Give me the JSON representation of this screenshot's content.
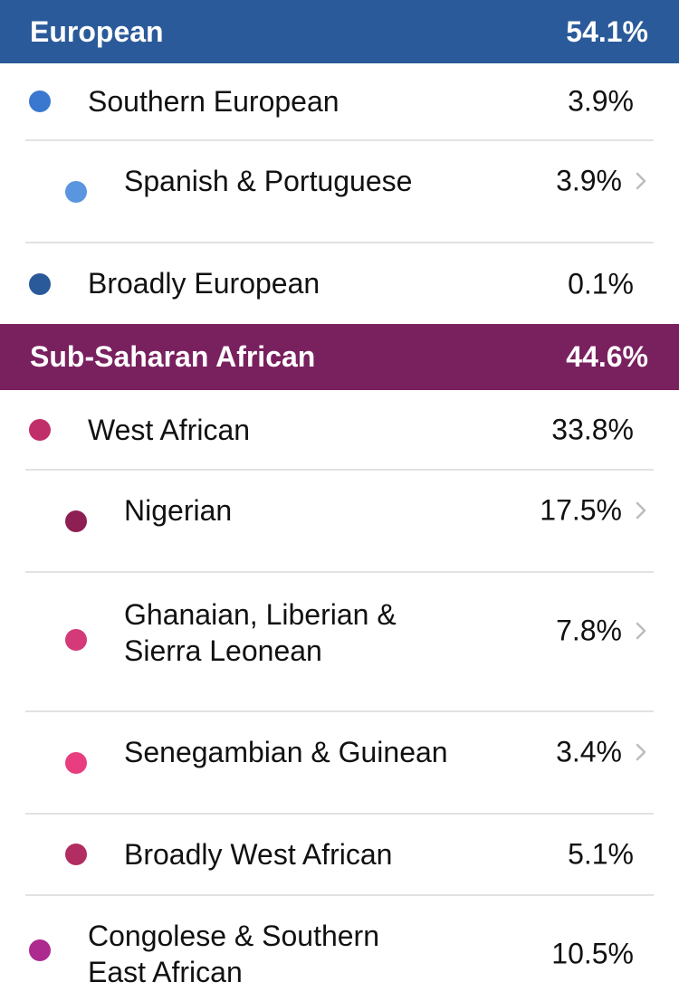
{
  "sections": {
    "european": {
      "title": "European",
      "percent": "54.1%",
      "color": "#2a5a99",
      "rows": [
        {
          "label": "Southern European",
          "percent": "3.9%",
          "dot_color": "#3a78d0",
          "level": 1,
          "expandable": false
        },
        {
          "label": "Spanish & Portuguese",
          "percent": "3.9%",
          "dot_color": "#5a95e0",
          "level": 2,
          "expandable": true
        },
        {
          "label": "Broadly European",
          "percent": "0.1%",
          "dot_color": "#2a5a99",
          "level": 1,
          "expandable": false
        }
      ]
    },
    "african": {
      "title": "Sub-Saharan African",
      "percent": "44.6%",
      "color": "#79205f",
      "rows": [
        {
          "label": "West African",
          "percent": "33.8%",
          "dot_color": "#c12f6a",
          "level": 1,
          "expandable": false
        },
        {
          "label": "Nigerian",
          "percent": "17.5%",
          "dot_color": "#8e1f52",
          "level": 2,
          "expandable": true
        },
        {
          "label_line1": "Ghanaian, Liberian &",
          "label_line2": "Sierra Leonean",
          "percent": "7.8%",
          "dot_color": "#d43a78",
          "level": 2,
          "expandable": true
        },
        {
          "label": "Senegambian & Guinean",
          "percent": "3.4%",
          "dot_color": "#e83e7f",
          "level": 2,
          "expandable": true
        },
        {
          "label": "Broadly West African",
          "percent": "5.1%",
          "dot_color": "#b12d62",
          "level": 2,
          "expandable": false
        },
        {
          "label_line1": "Congolese & Southern",
          "label_line2": "East African",
          "percent": "10.5%",
          "dot_color": "#ad2a8f",
          "level": 1,
          "expandable": false
        }
      ]
    }
  },
  "icons": {
    "chevron": "chevron-right-icon"
  }
}
